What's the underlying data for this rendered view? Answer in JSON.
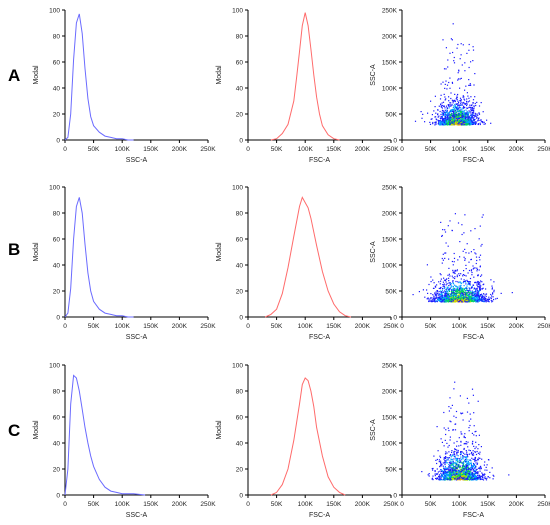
{
  "rows": [
    {
      "label": "A"
    },
    {
      "label": "B"
    },
    {
      "label": "C"
    }
  ],
  "colors": {
    "ssc_line": "#6b6bff",
    "fsc_line": "#ff6b6b"
  },
  "chart_data": [
    {
      "panel": "A-SSC",
      "type": "line",
      "color": "#6b6bff",
      "xlabel": "SSC-A",
      "ylabel": "Modal",
      "xlim": [
        0,
        250000
      ],
      "ylim": [
        0,
        100
      ],
      "xticks": [
        "0",
        "50K",
        "100K",
        "150K",
        "200K",
        "250K"
      ],
      "yticks": [
        "0",
        "20",
        "40",
        "60",
        "80",
        "100"
      ],
      "x": [
        0,
        5000,
        10000,
        15000,
        20000,
        25000,
        30000,
        35000,
        40000,
        45000,
        50000,
        60000,
        70000,
        80000,
        90000,
        100000,
        110000,
        120000
      ],
      "values": [
        0,
        2,
        20,
        62,
        90,
        97,
        82,
        55,
        32,
        18,
        11,
        6,
        3,
        2,
        1,
        1,
        0,
        0
      ]
    },
    {
      "panel": "A-FSC",
      "type": "line",
      "color": "#ff6b6b",
      "xlabel": "FSC-A",
      "ylabel": "Modal",
      "xlim": [
        0,
        250000
      ],
      "ylim": [
        0,
        100
      ],
      "xticks": [
        "0",
        "50K",
        "100K",
        "150K",
        "200K",
        "250K"
      ],
      "yticks": [
        "0",
        "20",
        "40",
        "60",
        "80",
        "100"
      ],
      "x": [
        40000,
        50000,
        60000,
        70000,
        80000,
        85000,
        90000,
        95000,
        100000,
        105000,
        110000,
        115000,
        120000,
        125000,
        130000,
        140000,
        150000,
        160000
      ],
      "values": [
        0,
        1,
        5,
        12,
        30,
        48,
        68,
        88,
        98,
        88,
        70,
        50,
        33,
        20,
        11,
        4,
        1,
        0
      ]
    },
    {
      "panel": "A-SCATTER",
      "type": "scatter",
      "xlabel": "FSC-A",
      "ylabel": "SSC-A",
      "xlim": [
        0,
        250000
      ],
      "ylim": [
        0,
        250000
      ],
      "xticks": [
        "0",
        "50K",
        "100K",
        "150K",
        "200K",
        "250K"
      ],
      "yticks": [
        "0",
        "50K",
        "100K",
        "150K",
        "200K",
        "250K"
      ],
      "center": [
        95000,
        30000
      ],
      "spread": [
        18000,
        14000
      ]
    },
    {
      "panel": "B-SSC",
      "type": "line",
      "color": "#6b6bff",
      "xlabel": "SSC-A",
      "ylabel": "Modal",
      "xlim": [
        0,
        250000
      ],
      "ylim": [
        0,
        100
      ],
      "xticks": [
        "0",
        "50K",
        "100K",
        "150K",
        "200K",
        "250K"
      ],
      "yticks": [
        "0",
        "20",
        "40",
        "60",
        "80",
        "100"
      ],
      "x": [
        0,
        5000,
        10000,
        15000,
        20000,
        25000,
        30000,
        35000,
        40000,
        45000,
        50000,
        60000,
        70000,
        80000,
        90000,
        100000,
        110000,
        120000
      ],
      "values": [
        0,
        3,
        22,
        60,
        85,
        92,
        80,
        56,
        34,
        20,
        12,
        6,
        3,
        2,
        1,
        1,
        0,
        0
      ]
    },
    {
      "panel": "B-FSC",
      "type": "line",
      "color": "#ff6b6b",
      "xlabel": "FSC-A",
      "ylabel": "Modal",
      "xlim": [
        0,
        250000
      ],
      "ylim": [
        0,
        100
      ],
      "xticks": [
        "0",
        "50K",
        "100K",
        "150K",
        "200K",
        "250K"
      ],
      "yticks": [
        "0",
        "20",
        "40",
        "60",
        "80",
        "100"
      ],
      "x": [
        30000,
        40000,
        50000,
        60000,
        70000,
        80000,
        90000,
        95000,
        100000,
        105000,
        110000,
        120000,
        130000,
        140000,
        150000,
        160000,
        170000,
        180000
      ],
      "values": [
        0,
        2,
        6,
        18,
        38,
        62,
        85,
        92,
        88,
        84,
        76,
        55,
        35,
        20,
        10,
        4,
        1,
        0
      ]
    },
    {
      "panel": "B-SCATTER",
      "type": "scatter",
      "xlabel": "FSC-A",
      "ylabel": "SSC-A",
      "xlim": [
        0,
        250000
      ],
      "ylim": [
        0,
        250000
      ],
      "xticks": [
        "0",
        "50K",
        "100K",
        "150K",
        "200K",
        "250K"
      ],
      "yticks": [
        "0",
        "50K",
        "100K",
        "150K",
        "200K",
        "250K"
      ],
      "center": [
        100000,
        30000
      ],
      "spread": [
        24000,
        14000
      ]
    },
    {
      "panel": "C-SSC",
      "type": "line",
      "color": "#6b6bff",
      "xlabel": "SSC-A",
      "ylabel": "Modal",
      "xlim": [
        0,
        250000
      ],
      "ylim": [
        0,
        100
      ],
      "xticks": [
        "0",
        "50K",
        "100K",
        "150K",
        "200K",
        "250K"
      ],
      "yticks": [
        "0",
        "20",
        "40",
        "60",
        "80",
        "100"
      ],
      "x": [
        0,
        5000,
        10000,
        15000,
        20000,
        25000,
        30000,
        35000,
        40000,
        45000,
        50000,
        60000,
        70000,
        80000,
        90000,
        100000,
        120000,
        140000
      ],
      "values": [
        0,
        20,
        70,
        92,
        90,
        80,
        66,
        52,
        40,
        30,
        22,
        12,
        6,
        3,
        2,
        1,
        1,
        0
      ]
    },
    {
      "panel": "C-FSC",
      "type": "line",
      "color": "#ff6b6b",
      "xlabel": "FSC-A",
      "ylabel": "Modal",
      "xlim": [
        0,
        250000
      ],
      "ylim": [
        0,
        100
      ],
      "xticks": [
        "0",
        "50K",
        "100K",
        "150K",
        "200K",
        "250K"
      ],
      "yticks": [
        "0",
        "20",
        "40",
        "60",
        "80",
        "100"
      ],
      "x": [
        40000,
        50000,
        60000,
        70000,
        80000,
        90000,
        95000,
        100000,
        105000,
        110000,
        115000,
        120000,
        130000,
        140000,
        150000,
        160000,
        170000
      ],
      "values": [
        0,
        2,
        8,
        20,
        42,
        70,
        85,
        90,
        88,
        80,
        68,
        52,
        30,
        14,
        6,
        2,
        0
      ]
    },
    {
      "panel": "C-SCATTER",
      "type": "scatter",
      "xlabel": "FSC-A",
      "ylabel": "SSC-A",
      "xlim": [
        0,
        250000
      ],
      "ylim": [
        0,
        250000
      ],
      "xticks": [
        "0",
        "50K",
        "100K",
        "150K",
        "200K",
        "250K"
      ],
      "yticks": [
        "0",
        "50K",
        "100K",
        "150K",
        "200K",
        "250K"
      ],
      "center": [
        100000,
        30000
      ],
      "spread": [
        20000,
        18000
      ]
    }
  ]
}
